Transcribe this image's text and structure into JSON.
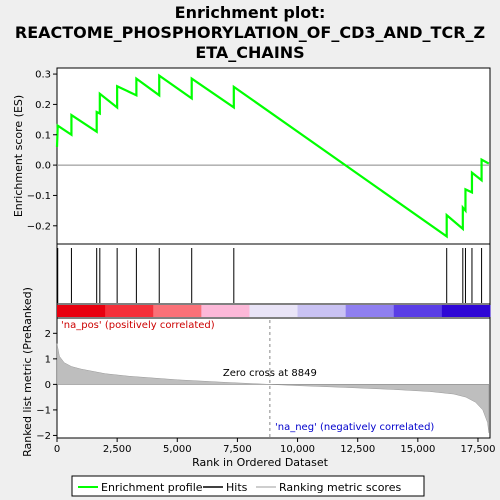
{
  "chart_data": {
    "type": "line",
    "title_lines": [
      "Enrichment plot:",
      "REACTOME_PHOSPHORYLATION_OF_CD3_AND_TCR_Z",
      "ETA_CHAINS"
    ],
    "xlabel": "Rank in Ordered Dataset",
    "top_panel": {
      "ylabel": "Enrichment score (ES)",
      "ylim": [
        -0.26,
        0.32
      ],
      "yticks": [
        -0.2,
        -0.1,
        0.0,
        0.1,
        0.2,
        0.3
      ],
      "ytick_labels": [
        "−0.2",
        "−0.1",
        "0.0",
        "0.1",
        "0.2",
        "0.3"
      ],
      "series": [
        {
          "name": "Enrichment profile",
          "color": "#00ff00",
          "x": [
            0,
            30,
            30,
            600,
            600,
            1650,
            1650,
            1780,
            1780,
            2500,
            2500,
            3300,
            3300,
            4250,
            4250,
            5600,
            5600,
            7350,
            7350,
            16200,
            16200,
            16870,
            16870,
            16980,
            16980,
            17250,
            17250,
            17650,
            17650,
            17950
          ],
          "y": [
            0.06,
            0.13,
            0.13,
            0.1,
            0.165,
            0.11,
            0.175,
            0.17,
            0.235,
            0.19,
            0.26,
            0.23,
            0.285,
            0.23,
            0.295,
            0.22,
            0.285,
            0.19,
            0.258,
            -0.235,
            -0.165,
            -0.21,
            -0.14,
            -0.15,
            -0.08,
            -0.09,
            -0.025,
            -0.05,
            0.018,
            0.005
          ]
        }
      ]
    },
    "hits": {
      "name": "Hits",
      "x": [
        30,
        600,
        1650,
        1780,
        2500,
        3300,
        4250,
        5600,
        7350,
        16200,
        16870,
        16980,
        17250,
        17650
      ]
    },
    "bottom_panel": {
      "ylabel": "Ranked list metric (PreRanked)",
      "ylim": [
        -2.1,
        2.6
      ],
      "yticks": [
        -2,
        -1,
        0,
        1,
        2
      ],
      "ytick_labels": [
        "−2",
        "−1",
        "0",
        "1",
        "2"
      ],
      "series_name": "Ranking metric scores",
      "x": [
        0,
        100,
        300,
        600,
        1000,
        2000,
        3000,
        5000,
        7000,
        8849,
        10000,
        12000,
        14000,
        15500,
        16500,
        17000,
        17400,
        17700,
        17900,
        17950
      ],
      "y": [
        1.6,
        1.1,
        0.85,
        0.7,
        0.6,
        0.42,
        0.32,
        0.18,
        0.08,
        0.0,
        -0.05,
        -0.12,
        -0.2,
        -0.28,
        -0.38,
        -0.5,
        -0.7,
        -1.0,
        -1.5,
        -1.9
      ]
    },
    "xlim": [
      0,
      18000
    ],
    "xticks": [
      0,
      2500,
      5000,
      7500,
      10000,
      12500,
      15000,
      17500
    ],
    "xtick_labels": [
      "0",
      "2,500",
      "5,000",
      "7,500",
      "10,000",
      "12,500",
      "15,000",
      "17,500"
    ],
    "zero_cross": 8849,
    "zero_cross_label": "Zero cross at 8849",
    "pos_label": "'na_pos' (positively correlated)",
    "neg_label": "'na_neg' (negatively correlated)",
    "heatbar_colors": [
      "#e8000f",
      "#f5303a",
      "#fa7178",
      "#fcb8d8",
      "#e9e4f7",
      "#c9c2f3",
      "#8f7ff0",
      "#5a3ee6",
      "#2f07d6"
    ],
    "legend": [
      {
        "label": "Enrichment profile",
        "color": "#00ff00"
      },
      {
        "label": "Hits",
        "color": "#000000"
      },
      {
        "label": "Ranking metric scores",
        "color": "#bebebe"
      }
    ]
  }
}
